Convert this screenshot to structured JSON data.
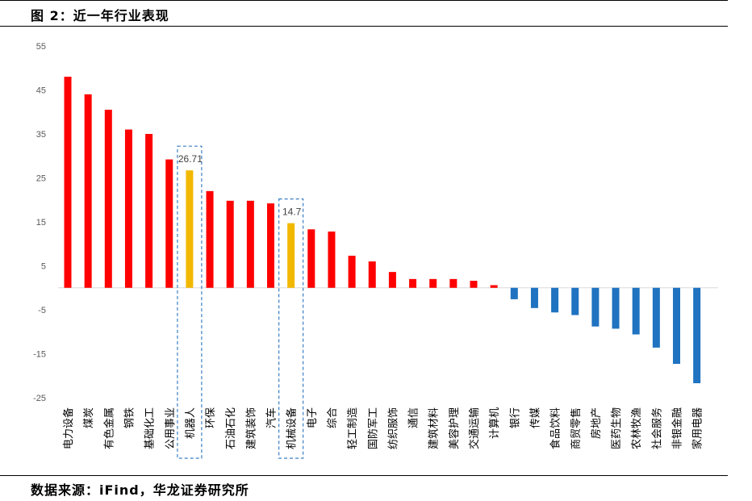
{
  "figure": {
    "title": "图 2：近一年行业表现",
    "source": "数据来源：iFind，华龙证券研究所"
  },
  "chart_data": {
    "type": "bar",
    "title": "",
    "xlabel": "",
    "ylabel": "",
    "ylim": [
      -25,
      55
    ],
    "yticks": [
      55,
      45,
      35,
      25,
      15,
      5,
      -5,
      -15,
      -25
    ],
    "grid": false,
    "legend": "none",
    "colors": {
      "positive": "#ff0000",
      "negative": "#1f73c0",
      "highlight": "#f2b800",
      "box": "#3a7fc4"
    },
    "categories": [
      "电力设备",
      "煤炭",
      "有色金属",
      "钢铁",
      "基础化工",
      "公用事业",
      "机器人",
      "环保",
      "石油石化",
      "建筑装饰",
      "汽车",
      "机械设备",
      "电子",
      "综合",
      "轻工制造",
      "国防军工",
      "纺织服饰",
      "通信",
      "建筑材料",
      "美容护理",
      "交通运输",
      "计算机",
      "银行",
      "传媒",
      "食品饮料",
      "商贸零售",
      "房地产",
      "医药生物",
      "农林牧渔",
      "社会服务",
      "非银金融",
      "家用电器"
    ],
    "values": [
      48,
      44,
      40.5,
      36,
      35,
      29.2,
      26.71,
      22,
      19.8,
      19.8,
      19.2,
      14.7,
      13.3,
      12.8,
      7.3,
      6,
      3.6,
      2,
      2,
      2,
      1.6,
      0.6,
      -2.6,
      -4.6,
      -5.6,
      -6.2,
      -8.8,
      -9.3,
      -10.6,
      -13.6,
      -17.3,
      -21.7
    ],
    "highlighted": [
      "机器人",
      "机械设备"
    ],
    "data_labels": [
      {
        "category": "机器人",
        "text": "26.71"
      },
      {
        "category": "机械设备",
        "text": "14.7"
      }
    ]
  }
}
